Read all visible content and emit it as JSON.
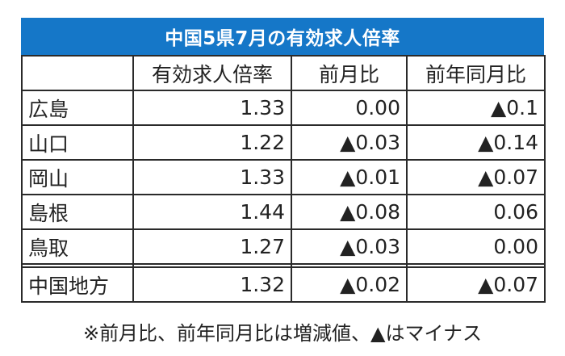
{
  "title": "中国5県7月の有効求人倍率",
  "headers": [
    "",
    "有効求人倍率",
    "前月比",
    "前年同月比"
  ],
  "rows": [
    {
      "pref": "広島",
      "ratio": "1.33",
      "mom": "0.00",
      "yoy": "▲0.1"
    },
    {
      "pref": "山口",
      "ratio": "1.22",
      "mom": "▲0.03",
      "yoy": "▲0.14"
    },
    {
      "pref": "岡山",
      "ratio": "1.33",
      "mom": "▲0.01",
      "yoy": "▲0.07"
    },
    {
      "pref": "島根",
      "ratio": "1.44",
      "mom": "▲0.08",
      "yoy": "0.06"
    },
    {
      "pref": "鳥取",
      "ratio": "1.27",
      "mom": "▲0.03",
      "yoy": "0.00"
    }
  ],
  "total": {
    "pref": "中国地方",
    "ratio": "1.32",
    "mom": "▲0.02",
    "yoy": "▲0.07"
  },
  "note": "※前月比、前年同月比は増減値、▲はマイナス",
  "colors": {
    "title_bg": "#1577c8",
    "title_text": "#ffffff",
    "border": "#2a2a2a"
  }
}
